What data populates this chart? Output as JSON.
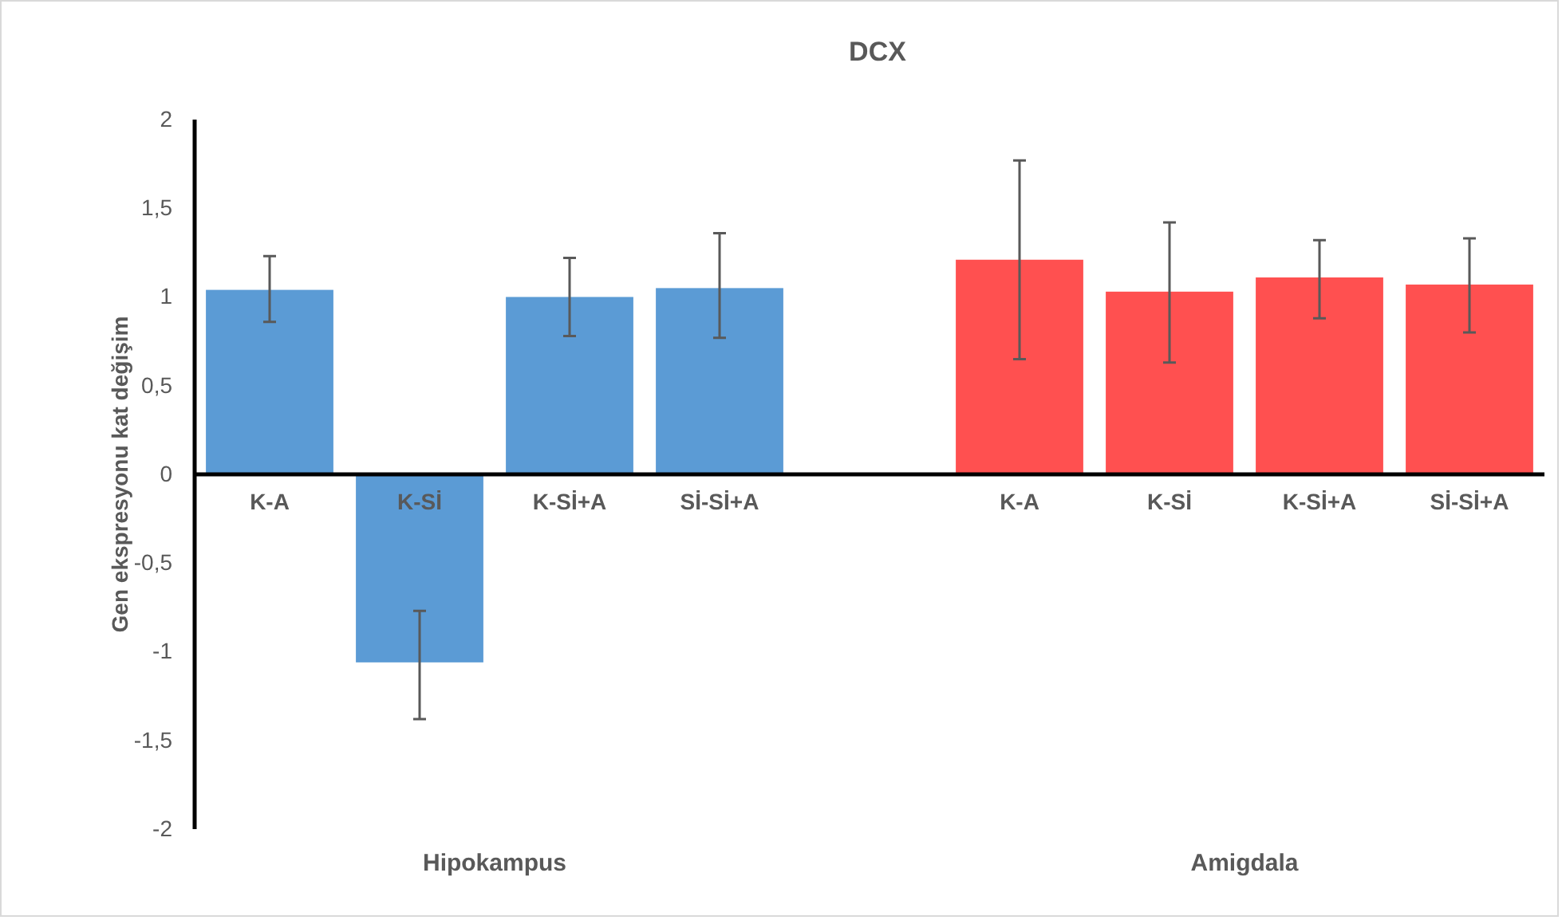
{
  "chart_data": {
    "type": "bar",
    "title": "DCX",
    "ylabel": "Gen ekspresyonu kat değişim",
    "categories": [
      "K-A",
      "K-Sİ",
      "K-Sİ+A",
      "Sİ-Sİ+A",
      null,
      "K-A",
      "K-Sİ",
      "K-Sİ+A",
      "Sİ-Sİ+A"
    ],
    "values": [
      1.04,
      -1.06,
      1.0,
      1.05,
      null,
      1.21,
      1.03,
      1.11,
      1.07
    ],
    "colors": [
      "#5b9bd5",
      "#5b9bd5",
      "#5b9bd5",
      "#5b9bd5",
      null,
      "#ff5050",
      "#ff5050",
      "#ff5050",
      "#ff5050"
    ],
    "errors": [
      [
        0.86,
        1.23
      ],
      [
        -1.38,
        -0.77
      ],
      [
        0.78,
        1.22
      ],
      [
        0.77,
        1.36
      ],
      null,
      [
        0.65,
        1.77
      ],
      [
        0.63,
        1.42
      ],
      [
        0.88,
        1.32
      ],
      [
        0.8,
        1.33
      ]
    ],
    "ylim": [
      -2,
      2
    ],
    "yticks": [
      {
        "value": -2,
        "label": "-2"
      },
      {
        "value": -1.5,
        "label": "-1,5"
      },
      {
        "value": -1,
        "label": "-1"
      },
      {
        "value": -0.5,
        "label": "-0,5"
      },
      {
        "value": 0,
        "label": "0"
      },
      {
        "value": 0.5,
        "label": "0,5"
      },
      {
        "value": 1,
        "label": "1"
      },
      {
        "value": 1.5,
        "label": "1,5"
      },
      {
        "value": 2,
        "label": "2"
      }
    ],
    "grid": false,
    "annotations": [
      "Hipokampus",
      "Amigdala"
    ]
  }
}
